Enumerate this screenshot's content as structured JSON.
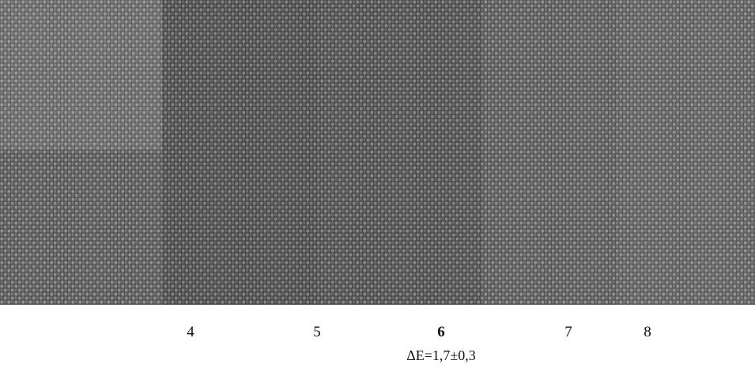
{
  "labels": [
    "4",
    "5",
    "6",
    "7",
    "8"
  ],
  "caption": "ΔE=1,7±0,3"
}
